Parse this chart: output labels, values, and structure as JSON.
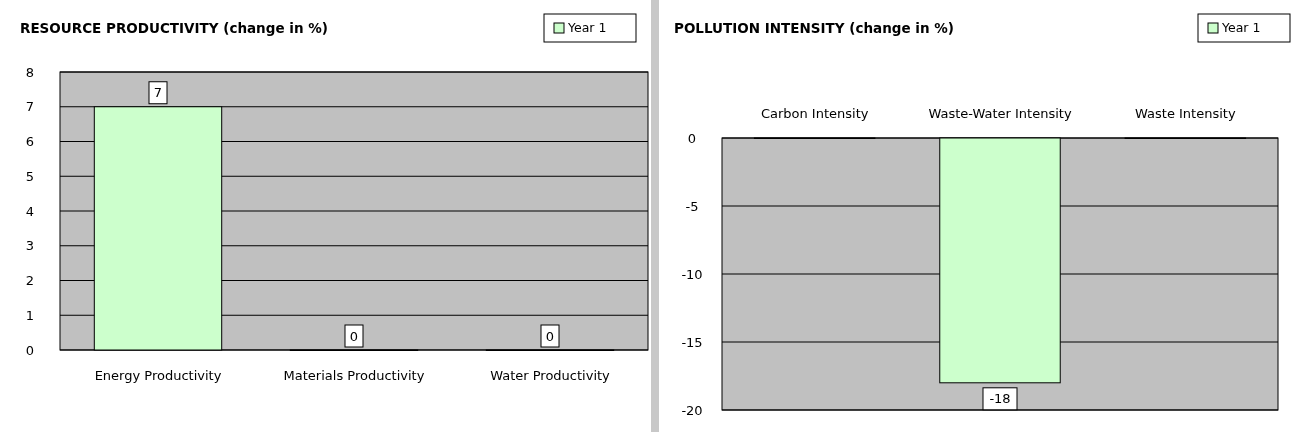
{
  "chart_data": [
    {
      "type": "bar",
      "title": "RESOURCE PRODUCTIVITY (change in  %)",
      "categories": [
        "Energy Productivity",
        "Materials Productivity",
        "Water Productivity"
      ],
      "series": [
        {
          "name": "Year 1",
          "color": "#ccffcc",
          "values": [
            7,
            0,
            0
          ],
          "value_labels": [
            "7",
            "0",
            "0"
          ]
        }
      ],
      "ylim": [
        0,
        8
      ],
      "yticks": [
        0,
        1,
        2,
        3,
        4,
        5,
        6,
        7,
        8
      ],
      "grid": "y",
      "legend": "top right"
    },
    {
      "type": "bar",
      "title": "POLLUTION INTENSITY (change in  %)",
      "categories": [
        "Carbon Intensity",
        "Waste-Water Intensity",
        "Waste Intensity"
      ],
      "series": [
        {
          "name": "Year 1",
          "color": "#ccffcc",
          "values": [
            0,
            -18,
            0
          ],
          "value_labels": [
            null,
            "-18",
            null
          ]
        }
      ],
      "ylim": [
        -20,
        0
      ],
      "yticks": [
        -20,
        -15,
        -10,
        -5,
        0
      ],
      "grid": "y",
      "legend": "top right"
    }
  ]
}
